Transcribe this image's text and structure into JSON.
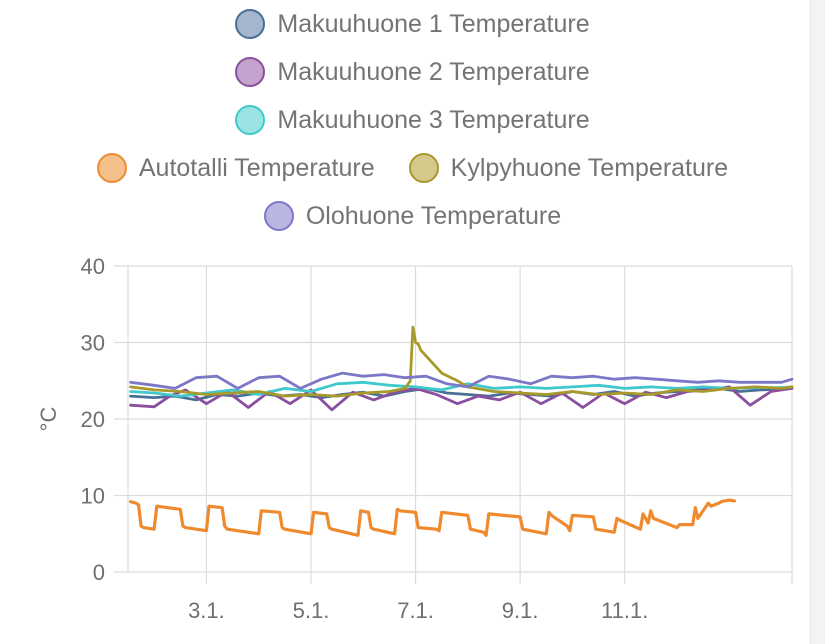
{
  "chart_data": {
    "type": "line",
    "ylabel": "°C",
    "ylim": [
      0,
      40
    ],
    "y_ticks": [
      "0",
      "10",
      "20",
      "30",
      "40"
    ],
    "x_tick_labels": [
      "3.1.",
      "5.1.",
      "7.1.",
      "9.1.",
      "11.1."
    ],
    "x_tick_positions": [
      3,
      5,
      7,
      9,
      11
    ],
    "xlim": [
      1.5,
      14.2
    ],
    "grid": true,
    "legend_position": "top",
    "series": [
      {
        "name": "Makuuhuone 1 Temperature",
        "color": "#4a6f97",
        "fill": "#a4b6ce",
        "x": [
          1.55,
          2.0,
          2.4,
          2.8,
          3.2,
          3.6,
          4.0,
          4.4,
          4.8,
          5.2,
          5.6,
          6.0,
          6.4,
          6.8,
          7.2,
          7.6,
          8.0,
          8.4,
          8.8,
          9.2,
          9.6,
          10.0,
          10.4,
          10.8,
          11.2,
          11.6,
          12.0,
          12.4,
          12.8,
          13.2,
          13.6,
          14.0,
          14.2
        ],
        "y": [
          23.0,
          22.8,
          23.0,
          22.5,
          23.2,
          23.0,
          23.4,
          23.0,
          23.2,
          22.8,
          23.2,
          23.5,
          23.0,
          23.6,
          24.0,
          23.4,
          23.2,
          23.0,
          23.4,
          23.2,
          23.0,
          23.6,
          23.2,
          23.6,
          23.0,
          23.4,
          23.6,
          23.8,
          24.0,
          23.6,
          23.8,
          23.9,
          24.0
        ]
      },
      {
        "name": "Makuuhuone 2 Temperature",
        "color": "#8a4f9e",
        "fill": "#c4a3cf",
        "x": [
          1.55,
          2.0,
          2.3,
          2.6,
          3.0,
          3.4,
          3.8,
          4.2,
          4.6,
          5.0,
          5.4,
          5.8,
          6.2,
          6.6,
          7.0,
          7.4,
          7.8,
          8.2,
          8.6,
          9.0,
          9.4,
          9.8,
          10.2,
          10.6,
          11.0,
          11.4,
          11.8,
          12.2,
          12.6,
          13.0,
          13.4,
          13.8,
          14.2
        ],
        "y": [
          21.8,
          21.6,
          23.0,
          23.8,
          22.0,
          23.6,
          21.5,
          23.6,
          22.0,
          23.8,
          21.2,
          23.5,
          22.5,
          23.5,
          24.0,
          23.2,
          22.0,
          23.0,
          22.5,
          23.5,
          22.0,
          23.4,
          21.5,
          23.4,
          22.0,
          23.5,
          22.8,
          23.6,
          23.8,
          24.2,
          21.8,
          23.6,
          24.0
        ]
      },
      {
        "name": "Makuuhuone 3 Temperature",
        "color": "#3fc9cc",
        "fill": "#9be4e4",
        "x": [
          1.55,
          2.0,
          2.5,
          3.0,
          3.5,
          4.0,
          4.5,
          5.0,
          5.5,
          6.0,
          6.5,
          7.0,
          7.5,
          8.0,
          8.5,
          9.0,
          9.5,
          10.0,
          10.5,
          11.0,
          11.5,
          12.0,
          12.5,
          13.0,
          13.5,
          14.0,
          14.2
        ],
        "y": [
          23.6,
          23.4,
          23.0,
          23.4,
          23.8,
          23.2,
          24.0,
          23.6,
          24.6,
          24.8,
          24.4,
          24.2,
          23.8,
          24.6,
          24.0,
          24.2,
          24.0,
          24.2,
          24.4,
          24.0,
          24.2,
          24.0,
          24.2,
          24.0,
          24.1,
          24.1,
          24.2
        ]
      },
      {
        "name": "Autotalli Temperature",
        "color": "#ef8a2e",
        "fill": "#f5c08a",
        "x": [
          1.55,
          1.65,
          1.7,
          1.75,
          1.8,
          2.0,
          2.05,
          2.5,
          2.55,
          2.6,
          3.0,
          3.05,
          3.3,
          3.35,
          3.4,
          4.0,
          4.05,
          4.4,
          4.45,
          4.5,
          5.0,
          5.05,
          5.3,
          5.35,
          5.4,
          5.9,
          5.95,
          6.1,
          6.15,
          6.2,
          6.6,
          6.65,
          6.7,
          7.0,
          7.05,
          7.4,
          7.45,
          7.5,
          8.0,
          8.05,
          8.3,
          8.35,
          8.4,
          9.0,
          9.05,
          9.5,
          9.55,
          9.6,
          9.9,
          9.95,
          10.0,
          10.4,
          10.45,
          10.8,
          10.85,
          10.9,
          11.3,
          11.35,
          11.45,
          11.5,
          11.55,
          12.0,
          12.05,
          12.3,
          12.35,
          12.4,
          12.6,
          12.65,
          12.8,
          12.85,
          13.0,
          13.1
        ],
        "y": [
          9.2,
          9.0,
          8.8,
          6.0,
          5.8,
          5.6,
          8.6,
          8.2,
          6.0,
          5.8,
          5.4,
          8.6,
          8.4,
          6.0,
          5.6,
          5.0,
          8.0,
          7.8,
          5.8,
          5.6,
          5.0,
          7.8,
          7.6,
          5.8,
          5.6,
          4.8,
          8.0,
          7.8,
          5.8,
          5.6,
          5.0,
          8.2,
          8.0,
          7.8,
          5.8,
          5.6,
          5.4,
          7.8,
          7.4,
          5.6,
          5.2,
          4.8,
          7.6,
          7.2,
          5.6,
          5.0,
          7.8,
          7.4,
          6.0,
          5.4,
          7.4,
          7.2,
          5.6,
          5.2,
          7.0,
          6.8,
          5.6,
          7.6,
          6.4,
          8.0,
          7.0,
          5.8,
          6.2,
          6.2,
          8.4,
          7.0,
          9.0,
          8.6,
          9.0,
          9.2,
          9.4,
          9.3
        ]
      },
      {
        "name": "Kylpyhuone Temperature",
        "color": "#a89a2a",
        "fill": "#d4c98b",
        "x": [
          1.55,
          2.0,
          2.5,
          3.0,
          3.5,
          4.0,
          4.5,
          5.0,
          5.5,
          6.0,
          6.5,
          6.8,
          6.9,
          6.95,
          7.0,
          7.05,
          7.1,
          7.3,
          7.5,
          7.8,
          8.0,
          8.5,
          9.0,
          9.5,
          10.0,
          10.5,
          11.0,
          11.5,
          12.0,
          12.5,
          13.0,
          13.5,
          14.0,
          14.2
        ],
        "y": [
          24.2,
          23.8,
          23.6,
          23.2,
          23.4,
          23.6,
          23.0,
          23.2,
          23.0,
          23.4,
          23.6,
          24.0,
          25.0,
          32.0,
          30.0,
          29.8,
          29.0,
          27.5,
          26.0,
          25.0,
          24.2,
          23.6,
          23.4,
          23.2,
          23.6,
          23.2,
          23.4,
          23.2,
          23.8,
          23.6,
          24.0,
          24.2,
          24.0,
          24.2
        ]
      },
      {
        "name": "Olohuone Temperature",
        "color": "#7c77c6",
        "fill": "#b9b6e2",
        "x": [
          1.55,
          2.0,
          2.4,
          2.8,
          3.2,
          3.6,
          4.0,
          4.4,
          4.8,
          5.2,
          5.6,
          6.0,
          6.4,
          6.8,
          7.2,
          7.6,
          8.0,
          8.4,
          8.8,
          9.2,
          9.6,
          10.0,
          10.4,
          10.8,
          11.2,
          11.6,
          12.0,
          12.4,
          12.8,
          13.2,
          13.6,
          14.0,
          14.2
        ],
        "y": [
          24.8,
          24.4,
          24.0,
          25.4,
          25.6,
          24.0,
          25.4,
          25.6,
          24.0,
          25.2,
          26.0,
          25.6,
          25.8,
          25.4,
          25.6,
          24.6,
          24.2,
          25.6,
          25.2,
          24.6,
          25.6,
          25.4,
          25.6,
          25.2,
          25.4,
          25.2,
          25.0,
          24.8,
          25.0,
          24.8,
          24.8,
          24.8,
          25.2
        ]
      }
    ]
  }
}
